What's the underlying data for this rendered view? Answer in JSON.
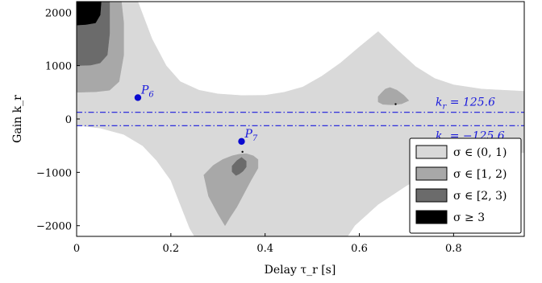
{
  "chart_data": {
    "type": "area",
    "title": "",
    "xlabel": "Delay τ_r [s]",
    "ylabel": "Gain k_r",
    "xlim": [
      0,
      0.95
    ],
    "ylim": [
      -2200,
      2200
    ],
    "xticks": [
      0,
      0.2,
      0.4,
      0.6,
      0.8
    ],
    "xtick_labels": [
      "0",
      "0.2",
      "0.4",
      "0.6",
      "0.8"
    ],
    "yticks": [
      -2000,
      -1000,
      0,
      1000,
      2000
    ],
    "ytick_labels": [
      "−2000",
      "−1000",
      "0",
      "1000",
      "2000"
    ],
    "grid": false,
    "legend_position": "bottom-right",
    "legend": [
      {
        "label": "σ ∈ (0, 1)",
        "color": "#d9d9d9"
      },
      {
        "label": "σ ∈ [1, 2)",
        "color": "#a8a8a8"
      },
      {
        "label": "σ ∈ [2, 3)",
        "color": "#6b6b6b"
      },
      {
        "label": "σ ≥ 3",
        "color": "#000000"
      }
    ],
    "regions": [
      {
        "level": "σ ∈ (0, 1)",
        "color": "#d9d9d9",
        "polygon": [
          [
            0,
            2200
          ],
          [
            0.13,
            2200
          ],
          [
            0.16,
            1500
          ],
          [
            0.19,
            1000
          ],
          [
            0.22,
            700
          ],
          [
            0.26,
            540
          ],
          [
            0.3,
            470
          ],
          [
            0.35,
            440
          ],
          [
            0.4,
            445
          ],
          [
            0.44,
            500
          ],
          [
            0.48,
            600
          ],
          [
            0.52,
            800
          ],
          [
            0.56,
            1050
          ],
          [
            0.6,
            1350
          ],
          [
            0.64,
            1640
          ],
          [
            0.68,
            1300
          ],
          [
            0.72,
            980
          ],
          [
            0.76,
            760
          ],
          [
            0.8,
            640
          ],
          [
            0.86,
            560
          ],
          [
            0.95,
            520
          ],
          [
            0.95,
            -630
          ],
          [
            0.88,
            -680
          ],
          [
            0.82,
            -760
          ],
          [
            0.76,
            -950
          ],
          [
            0.7,
            -1250
          ],
          [
            0.64,
            -1600
          ],
          [
            0.59,
            -2000
          ],
          [
            0.575,
            -2200
          ],
          [
            0.25,
            -2200
          ],
          [
            0.24,
            -2050
          ],
          [
            0.22,
            -1600
          ],
          [
            0.2,
            -1150
          ],
          [
            0.17,
            -780
          ],
          [
            0.14,
            -500
          ],
          [
            0.1,
            -290
          ],
          [
            0.05,
            -170
          ],
          [
            0,
            -120
          ]
        ]
      },
      {
        "level": "σ ∈ [1, 2)",
        "color": "#a8a8a8",
        "polygon": [
          [
            0,
            2200
          ],
          [
            0.095,
            2200
          ],
          [
            0.1,
            1800
          ],
          [
            0.1,
            1200
          ],
          [
            0.09,
            700
          ],
          [
            0.07,
            540
          ],
          [
            0.04,
            510
          ],
          [
            0,
            500
          ]
        ]
      },
      {
        "level": "σ ∈ [1, 2)",
        "color": "#a8a8a8",
        "polygon": [
          [
            0.27,
            -1050
          ],
          [
            0.29,
            -870
          ],
          [
            0.31,
            -760
          ],
          [
            0.33,
            -690
          ],
          [
            0.345,
            -660
          ],
          [
            0.36,
            -650
          ],
          [
            0.375,
            -690
          ],
          [
            0.385,
            -760
          ],
          [
            0.385,
            -920
          ],
          [
            0.37,
            -1150
          ],
          [
            0.355,
            -1400
          ],
          [
            0.34,
            -1650
          ],
          [
            0.325,
            -1850
          ],
          [
            0.315,
            -2000
          ],
          [
            0.3,
            -1780
          ],
          [
            0.28,
            -1450
          ]
        ]
      },
      {
        "level": "σ ∈ [1, 2)",
        "color": "#a8a8a8",
        "polygon": [
          [
            0.655,
            560
          ],
          [
            0.665,
            590
          ],
          [
            0.68,
            540
          ],
          [
            0.695,
            440
          ],
          [
            0.705,
            345
          ],
          [
            0.69,
            285
          ],
          [
            0.67,
            265
          ],
          [
            0.65,
            275
          ],
          [
            0.64,
            320
          ],
          [
            0.64,
            420
          ],
          [
            0.648,
            500
          ]
        ]
      },
      {
        "level": "σ ∈ [2, 3)",
        "color": "#6b6b6b",
        "polygon": [
          [
            0,
            2200
          ],
          [
            0.07,
            2200
          ],
          [
            0.07,
            1600
          ],
          [
            0.065,
            1200
          ],
          [
            0.05,
            1050
          ],
          [
            0.03,
            1010
          ],
          [
            0,
            1000
          ]
        ]
      },
      {
        "level": "σ ∈ [2, 3)",
        "color": "#6b6b6b",
        "polygon": [
          [
            0.33,
            -880
          ],
          [
            0.34,
            -780
          ],
          [
            0.35,
            -720
          ],
          [
            0.36,
            -790
          ],
          [
            0.36,
            -900
          ],
          [
            0.353,
            -980
          ],
          [
            0.345,
            -1030
          ],
          [
            0.338,
            -1060
          ],
          [
            0.33,
            -990
          ]
        ]
      },
      {
        "level": "σ ≥ 3",
        "color": "#000000",
        "polygon": [
          [
            0,
            2200
          ],
          [
            0.052,
            2200
          ],
          [
            0.05,
            1950
          ],
          [
            0.04,
            1800
          ],
          [
            0.02,
            1770
          ],
          [
            0,
            1760
          ]
        ]
      }
    ],
    "lines": [
      {
        "label": "k_r = 125.6",
        "y": 125.6,
        "style": "dash-dot",
        "color": "#1a1adc"
      },
      {
        "label": "k_r = −125.6",
        "y": -125.6,
        "style": "dash-dot",
        "color": "#1a1adc"
      }
    ],
    "points": [
      {
        "label": "P_6",
        "x": 0.13,
        "y": 400,
        "color": "#0a0ad0"
      },
      {
        "label": "P_7",
        "x": 0.35,
        "y": -420,
        "color": "#0a0ad0"
      }
    ],
    "markers": [
      {
        "x": 0.352,
        "y": -615
      },
      {
        "x": 0.677,
        "y": 278
      }
    ]
  }
}
